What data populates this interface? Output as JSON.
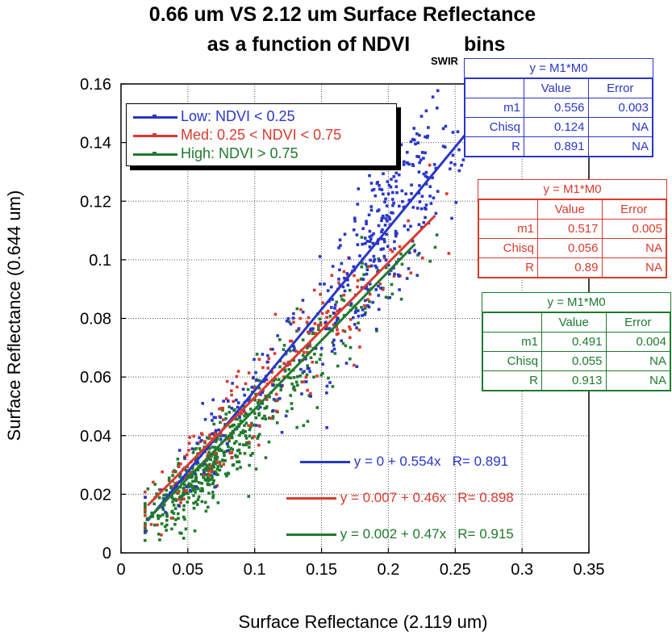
{
  "title": {
    "line1": "0.66 um VS 2.12 um Surface Reflectance",
    "line2": "as a function of NDVI",
    "subscript": "SWIR",
    "line2_end": "bins"
  },
  "colors": {
    "low": "#2a36c7",
    "med": "#d93a2e",
    "high": "#1f7a2e",
    "grid": "#555555"
  },
  "chart_data": {
    "type": "scatter",
    "title": "0.66 um VS 2.12 um Surface Reflectance as a function of NDVI SWIR bins",
    "xlabel": "Surface Reflectance (2.119 um)",
    "ylabel": "Surface Reflectance (0.644 um)",
    "xlim": [
      0,
      0.35
    ],
    "ylim": [
      0,
      0.16
    ],
    "xticks": [
      0,
      0.05,
      0.1,
      0.15,
      0.2,
      0.25,
      0.3,
      0.35
    ],
    "xtick_labels": [
      "0",
      "0.05",
      "0.1",
      "0.15",
      "0.2",
      "0.25",
      "0.3",
      "0.35"
    ],
    "yticks": [
      0,
      0.02,
      0.04,
      0.06,
      0.08,
      0.1,
      0.12,
      0.14,
      0.16
    ],
    "ytick_labels": [
      "0",
      "0.02",
      "0.04",
      "0.06",
      "0.08",
      "0.1",
      "0.12",
      "0.14",
      "0.16"
    ],
    "grid": true,
    "legend_position": "top-left",
    "series": [
      {
        "name": "Low: NDVI < 0.25",
        "color": "#2a36c7",
        "fit": {
          "intercept": 0,
          "slope": 0.554,
          "x_range": [
            0.02,
            0.26
          ],
          "label": "y = 0 + 0.554x   R= 0.891"
        },
        "clusters": [
          {
            "x": 0.08,
            "y": 0.045,
            "n": 80,
            "sx": 0.03,
            "sy": 0.012
          },
          {
            "x": 0.19,
            "y": 0.1,
            "n": 260,
            "sx": 0.035,
            "sy": 0.02
          },
          {
            "x": 0.205,
            "y": 0.128,
            "n": 80,
            "sx": 0.02,
            "sy": 0.014
          }
        ]
      },
      {
        "name": "Med: 0.25 < NDVI < 0.75",
        "color": "#d93a2e",
        "fit": {
          "intercept": 0.007,
          "slope": 0.46,
          "x_range": [
            0.02,
            0.235
          ],
          "label": "y = 0.007 + 0.46x   R= 0.898"
        },
        "clusters": [
          {
            "x": 0.07,
            "y": 0.038,
            "n": 110,
            "sx": 0.03,
            "sy": 0.012
          },
          {
            "x": 0.15,
            "y": 0.075,
            "n": 110,
            "sx": 0.04,
            "sy": 0.018
          }
        ]
      },
      {
        "name": "High: NDVI > 0.75",
        "color": "#1f7a2e",
        "fit": {
          "intercept": 0.002,
          "slope": 0.47,
          "x_range": [
            0.02,
            0.22
          ],
          "label": "y = 0.002 + 0.47x   R= 0.915"
        },
        "clusters": [
          {
            "x": 0.06,
            "y": 0.027,
            "n": 430,
            "sx": 0.025,
            "sy": 0.011
          },
          {
            "x": 0.14,
            "y": 0.066,
            "n": 170,
            "sx": 0.035,
            "sy": 0.016
          }
        ]
      }
    ]
  },
  "fit_boxes": {
    "low": {
      "caption": "y = M1*M0",
      "col_value": "Value",
      "col_error": "Error",
      "rows": [
        {
          "label": "m1",
          "value": "0.556",
          "error": "0.003"
        },
        {
          "label": "Chisq",
          "value": "0.124",
          "error": "NA"
        },
        {
          "label": "R",
          "value": "0.891",
          "error": "NA"
        }
      ]
    },
    "med": {
      "caption": "y = M1*M0",
      "col_value": "Value",
      "col_error": "Error",
      "rows": [
        {
          "label": "m1",
          "value": "0.517",
          "error": "0.005"
        },
        {
          "label": "Chisq",
          "value": "0.056",
          "error": "NA"
        },
        {
          "label": "R",
          "value": "0.89",
          "error": "NA"
        }
      ]
    },
    "high": {
      "caption": "y = M1*M0",
      "col_value": "Value",
      "col_error": "Error",
      "rows": [
        {
          "label": "m1",
          "value": "0.491",
          "error": "0.004"
        },
        {
          "label": "Chisq",
          "value": "0.055",
          "error": "NA"
        },
        {
          "label": "R",
          "value": "0.913",
          "error": "NA"
        }
      ]
    }
  }
}
